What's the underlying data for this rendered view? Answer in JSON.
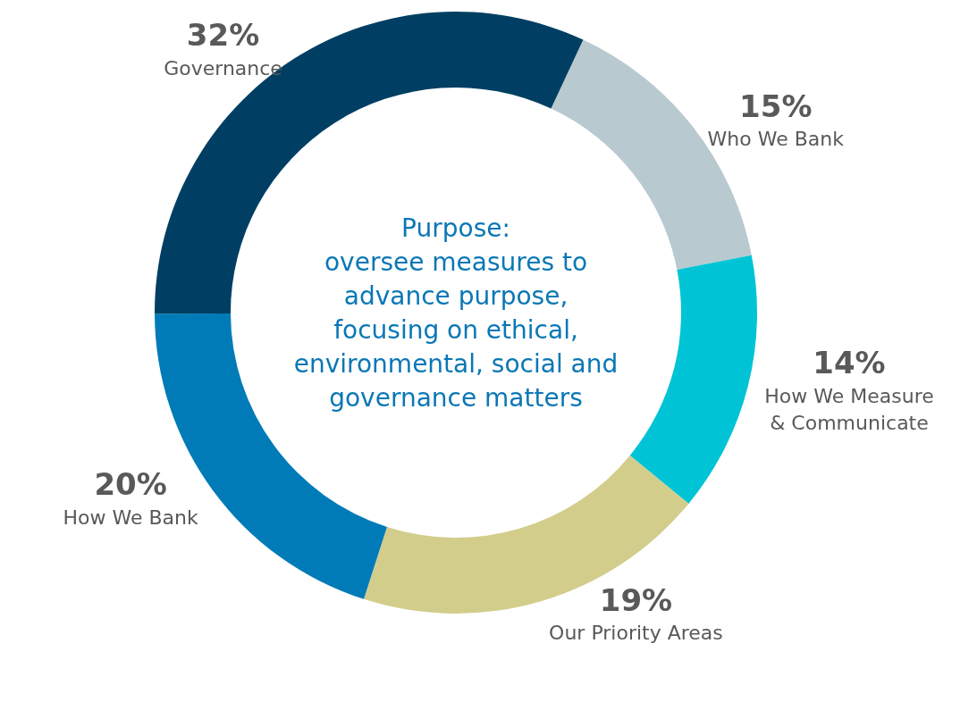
{
  "chart_data": {
    "type": "donut",
    "categories": [
      "Who We Bank",
      "How We Measure\n& Communicate",
      "Our Priority Areas",
      "How We Bank",
      "Governance"
    ],
    "values": [
      15,
      14,
      19,
      20,
      32
    ],
    "value_labels": [
      "15%",
      "14%",
      "19%",
      "20%",
      "32%"
    ],
    "colors": [
      "#b8c9d0",
      "#00c4d6",
      "#d3cd8c",
      "#007bb8",
      "#003f63"
    ],
    "annotations": [
      "Purpose:\noversee measures to\nadvance purpose,\nfocusing on ethical,\nenvironmental, social and\ngovernance matters"
    ],
    "legend": false
  }
}
